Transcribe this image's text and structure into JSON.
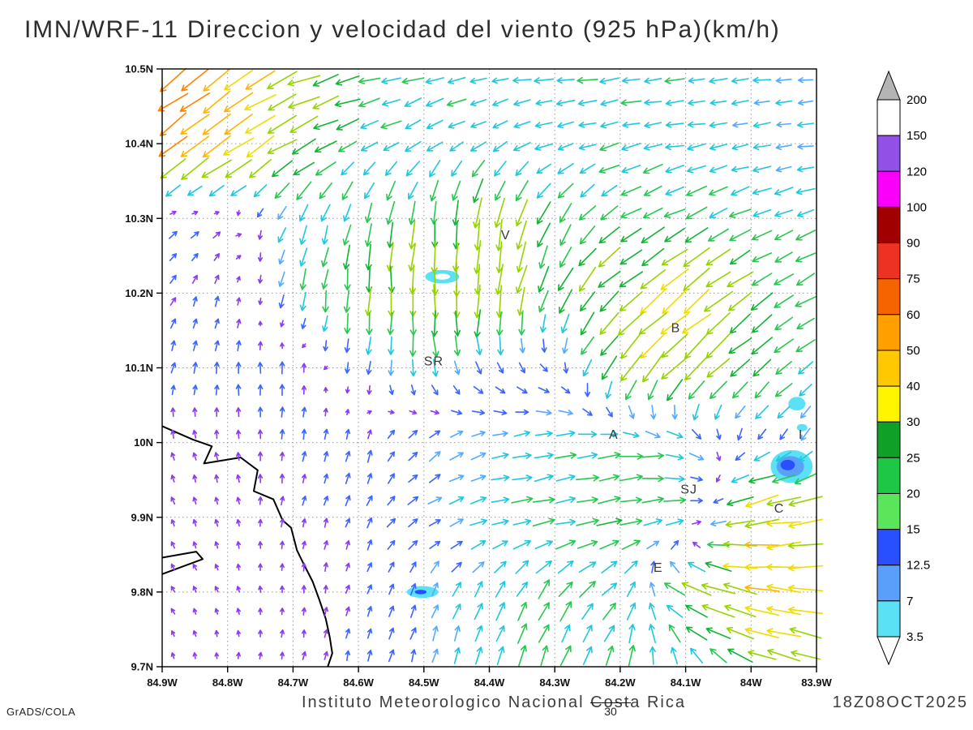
{
  "title": "IMN/WRF-11 Direccion y velocidad del viento (925 hPa)(km/h)",
  "watermark": "GrADS/COLA",
  "footer": {
    "institute": "Instituto Meteorologico Nacional Costa Rica",
    "datetime": "18Z08OCT2025",
    "reference_value": "30"
  },
  "chart_data": {
    "type": "vector_field",
    "title": "IMN/WRF-11 Direccion y velocidad del viento (925 hPa)(km/h)",
    "units": "km/h",
    "level": "925 hPa",
    "lon_range": [
      -84.9,
      -83.9
    ],
    "lat_range": [
      9.7,
      10.5
    ],
    "grid_on": true,
    "x_ticks": [
      {
        "label": "84.9W",
        "lon": -84.9
      },
      {
        "label": "84.8W",
        "lon": -84.8
      },
      {
        "label": "84.7W",
        "lon": -84.7
      },
      {
        "label": "84.6W",
        "lon": -84.6
      },
      {
        "label": "84.5W",
        "lon": -84.5
      },
      {
        "label": "84.4W",
        "lon": -84.4
      },
      {
        "label": "84.3W",
        "lon": -84.3
      },
      {
        "label": "84.2W",
        "lon": -84.2
      },
      {
        "label": "84.1W",
        "lon": -84.1
      },
      {
        "label": "84W",
        "lon": -84.0
      },
      {
        "label": "83.9W",
        "lon": -83.9
      }
    ],
    "y_ticks": [
      {
        "label": "9.7N",
        "lat": 9.7
      },
      {
        "label": "9.8N",
        "lat": 9.8
      },
      {
        "label": "9.9N",
        "lat": 9.9
      },
      {
        "label": "10N",
        "lat": 10.0
      },
      {
        "label": "10.1N",
        "lat": 10.1
      },
      {
        "label": "10.2N",
        "lat": 10.2
      },
      {
        "label": "10.3N",
        "lat": 10.3
      },
      {
        "label": "10.4N",
        "lat": 10.4
      },
      {
        "label": "10.5N",
        "lat": 10.5
      }
    ],
    "stations": [
      {
        "label": "V",
        "lon": -84.375,
        "lat": 10.272
      },
      {
        "label": "B",
        "lon": -84.115,
        "lat": 10.148
      },
      {
        "label": "SR",
        "lon": -84.485,
        "lat": 10.103
      },
      {
        "label": "A",
        "lon": -84.21,
        "lat": 10.005
      },
      {
        "label": "SJ",
        "lon": -84.095,
        "lat": 9.932
      },
      {
        "label": "C",
        "lon": -83.957,
        "lat": 9.906
      },
      {
        "label": "E",
        "lon": -84.142,
        "lat": 9.827
      },
      {
        "label": "I",
        "lon": -83.924,
        "lat": 10.005
      }
    ],
    "legend": {
      "position": "right",
      "labels": [
        "200",
        "150",
        "120",
        "100",
        "90",
        "75",
        "60",
        "50",
        "40",
        "30",
        "25",
        "20",
        "15",
        "12.5",
        "7",
        "3.5"
      ],
      "segment_colors_top_to_bottom": [
        "#ffffff",
        "#9350e6",
        "#fa00fa",
        "#a00000",
        "#eb3223",
        "#f56400",
        "#ffa000",
        "#ffc800",
        "#fff500",
        "#0fa028",
        "#1ec846",
        "#5ae65a",
        "#2850ff",
        "#5aa0fa",
        "#5ae1f5"
      ],
      "over_color": "#b4b4b4",
      "under_color": "#ffffff"
    },
    "arrow_speed_colors": [
      {
        "max": 7,
        "color": "#8c3cf0"
      },
      {
        "max": 12.5,
        "color": "#3c64ff"
      },
      {
        "max": 15,
        "color": "#55aaff"
      },
      {
        "max": 20,
        "color": "#1fc8dc"
      },
      {
        "max": 25,
        "color": "#28c850"
      },
      {
        "max": 30,
        "color": "#12b434"
      },
      {
        "max": 40,
        "color": "#96d400"
      },
      {
        "max": 50,
        "color": "#f0dc00"
      },
      {
        "max": 60,
        "color": "#ffb400"
      },
      {
        "max": 75,
        "color": "#ff8200"
      },
      {
        "max": 90,
        "color": "#f04616"
      },
      {
        "max": 1000,
        "color": "#dc1414"
      }
    ],
    "grid": {
      "lons": [
        -84.9,
        -84.8,
        -84.7,
        -84.6,
        -84.5,
        -84.4,
        -84.3,
        -84.2,
        -84.1,
        -84.0,
        -83.9
      ],
      "lats": [
        10.5,
        10.4,
        10.3,
        10.2,
        10.1,
        10.0,
        9.9,
        9.8,
        9.7
      ],
      "u": [
        [
          -62,
          -50,
          -36,
          -24,
          -20,
          -18,
          -18,
          -20,
          -18,
          -16,
          -15
        ],
        [
          -52,
          -42,
          -30,
          -18,
          -15,
          -14,
          -16,
          -18,
          -17,
          -15,
          -14
        ],
        [
          8,
          5,
          -8,
          -5,
          -3,
          -6,
          -12,
          -20,
          -22,
          -20,
          -18
        ],
        [
          4,
          2,
          -3,
          -2,
          0,
          -5,
          -10,
          -26,
          -36,
          -24,
          -18
        ],
        [
          2,
          1,
          0,
          -2,
          2,
          4,
          6,
          -22,
          -30,
          -20,
          -15
        ],
        [
          -2,
          -1,
          1,
          2,
          8,
          15,
          20,
          22,
          18,
          -6,
          -8
        ],
        [
          -2,
          -1,
          1,
          3,
          10,
          18,
          22,
          25,
          20,
          -44,
          -42
        ],
        [
          -2,
          -1,
          0,
          2,
          5,
          8,
          12,
          15,
          -28,
          -48,
          -45
        ],
        [
          -1,
          0,
          1,
          2,
          3,
          5,
          8,
          5,
          -6,
          -26,
          -35
        ]
      ],
      "v": [
        [
          -45,
          -32,
          -14,
          -6,
          -4,
          -3,
          -2,
          -3,
          -2,
          -2,
          -2
        ],
        [
          -38,
          -30,
          -15,
          -8,
          -10,
          -8,
          -5,
          -4,
          -3,
          -3,
          -2
        ],
        [
          5,
          3,
          -16,
          -20,
          -26,
          -32,
          -22,
          -12,
          -10,
          -8,
          -6
        ],
        [
          6,
          8,
          -18,
          -28,
          -36,
          -38,
          -26,
          -20,
          -28,
          -16,
          -10
        ],
        [
          8,
          9,
          10,
          -12,
          -16,
          -10,
          -5,
          -28,
          -30,
          -18,
          -12
        ],
        [
          6,
          5,
          7,
          10,
          8,
          5,
          3,
          2,
          -5,
          -9,
          -10
        ],
        [
          4,
          4,
          6,
          8,
          6,
          4,
          4,
          5,
          3,
          -8,
          -8
        ],
        [
          3,
          3,
          4,
          6,
          10,
          15,
          18,
          15,
          12,
          8,
          5
        ],
        [
          3,
          3,
          5,
          8,
          12,
          18,
          20,
          22,
          18,
          12,
          8
        ]
      ]
    },
    "display_grid": {
      "nx": 30,
      "ny": 27
    },
    "shaded_areas": [
      {
        "lon": -84.472,
        "lat": 10.222,
        "rx": 0.026,
        "ry": 0.009,
        "color": "#5ae1f5"
      },
      {
        "lon": -84.472,
        "lat": 10.222,
        "rx": 0.012,
        "ry": 0.004,
        "color": "#ffffff"
      },
      {
        "lon": -84.502,
        "lat": 9.8,
        "rx": 0.024,
        "ry": 0.008,
        "color": "#5ae1f5"
      },
      {
        "lon": -84.505,
        "lat": 9.8,
        "rx": 0.009,
        "ry": 0.003,
        "color": "#2850ff"
      },
      {
        "lon": -83.938,
        "lat": 9.968,
        "rx": 0.032,
        "ry": 0.022,
        "color": "#5ae1f5"
      },
      {
        "lon": -83.94,
        "lat": 9.968,
        "rx": 0.021,
        "ry": 0.014,
        "color": "#5aa0fa"
      },
      {
        "lon": -83.944,
        "lat": 9.97,
        "rx": 0.011,
        "ry": 0.007,
        "color": "#2850ff"
      },
      {
        "lon": -83.93,
        "lat": 10.052,
        "rx": 0.013,
        "ry": 0.009,
        "color": "#5ae1f5"
      },
      {
        "lon": -83.922,
        "lat": 10.02,
        "rx": 0.008,
        "ry": 0.005,
        "color": "#5ae1f5"
      }
    ],
    "coastline": [
      [
        -84.9,
        10.022
      ],
      [
        -84.853,
        10.004
      ],
      [
        -84.824,
        9.995
      ],
      [
        -84.836,
        9.972
      ],
      [
        -84.78,
        9.98
      ],
      [
        -84.754,
        9.963
      ],
      [
        -84.76,
        9.935
      ],
      [
        -84.73,
        9.924
      ],
      [
        -84.716,
        9.896
      ],
      [
        -84.703,
        9.886
      ],
      [
        -84.694,
        9.856
      ],
      [
        -84.684,
        9.838
      ],
      [
        -84.67,
        9.814
      ],
      [
        -84.66,
        9.79
      ],
      [
        -84.65,
        9.764
      ],
      [
        -84.644,
        9.74
      ],
      [
        -84.64,
        9.718
      ],
      [
        -84.647,
        9.7
      ]
    ],
    "spit": [
      [
        -84.9,
        9.846
      ],
      [
        -84.848,
        9.854
      ],
      [
        -84.838,
        9.844
      ],
      [
        -84.9,
        9.824
      ]
    ]
  }
}
